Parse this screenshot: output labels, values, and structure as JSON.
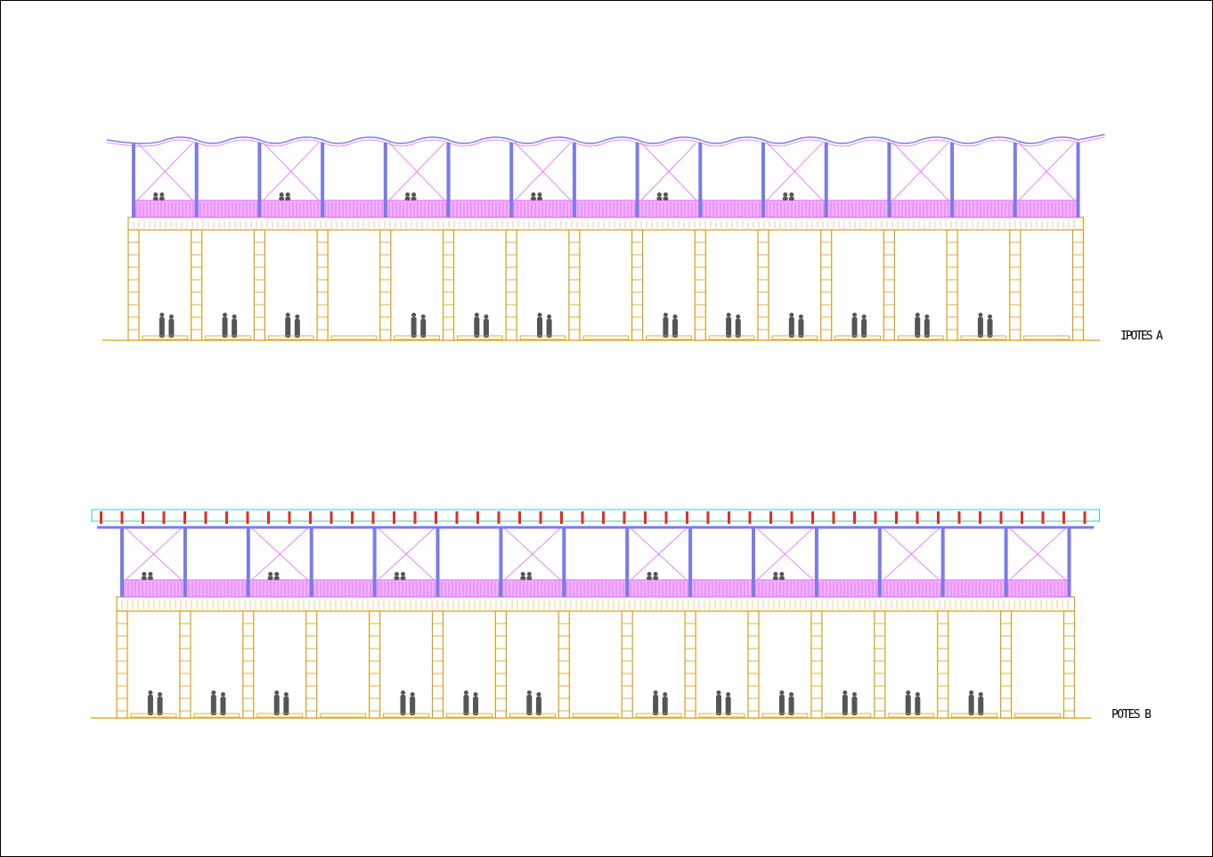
{
  "drawings": [
    {
      "label": "IPOTES A"
    },
    {
      "label": "POTES B"
    }
  ]
}
